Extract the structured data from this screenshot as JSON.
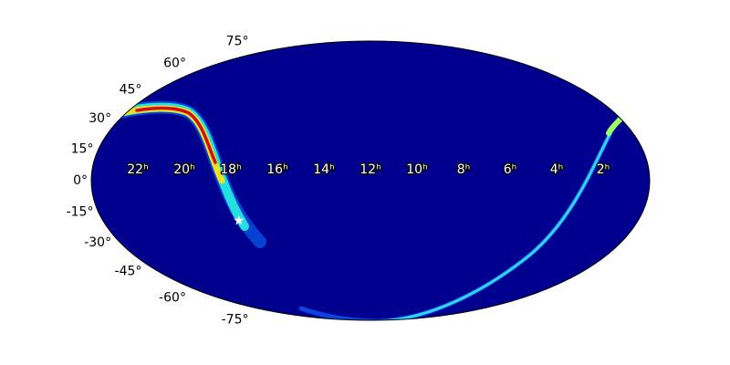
{
  "chart_data": {
    "type": "mollweide",
    "xticks": [
      {
        "value": 22,
        "label": "22ʰ"
      },
      {
        "value": 20,
        "label": "20ʰ"
      },
      {
        "value": 18,
        "label": "18ʰ"
      },
      {
        "value": 16,
        "label": "16ʰ"
      },
      {
        "value": 14,
        "label": "14ʰ"
      },
      {
        "value": 12,
        "label": "12ʰ"
      },
      {
        "value": 10,
        "label": "10ʰ"
      },
      {
        "value": 8,
        "label": "8ʰ"
      },
      {
        "value": 6,
        "label": "6ʰ"
      },
      {
        "value": 4,
        "label": "4ʰ"
      },
      {
        "value": 2,
        "label": "2ʰ"
      }
    ],
    "yticks": [
      {
        "value": 75,
        "label": "75°"
      },
      {
        "value": 60,
        "label": "60°"
      },
      {
        "value": 45,
        "label": "45°"
      },
      {
        "value": 30,
        "label": "30°"
      },
      {
        "value": 15,
        "label": "15°"
      },
      {
        "value": 0,
        "label": "0°"
      },
      {
        "value": -15,
        "label": "-15°"
      },
      {
        "value": -30,
        "label": "-30°"
      },
      {
        "value": -45,
        "label": "-45°"
      },
      {
        "value": -60,
        "label": "-60°"
      },
      {
        "value": -75,
        "label": "-75°"
      }
    ],
    "marker": {
      "x": 17.9,
      "y": -21,
      "color": "#ffffff"
    },
    "background_color": "#00008f"
  }
}
